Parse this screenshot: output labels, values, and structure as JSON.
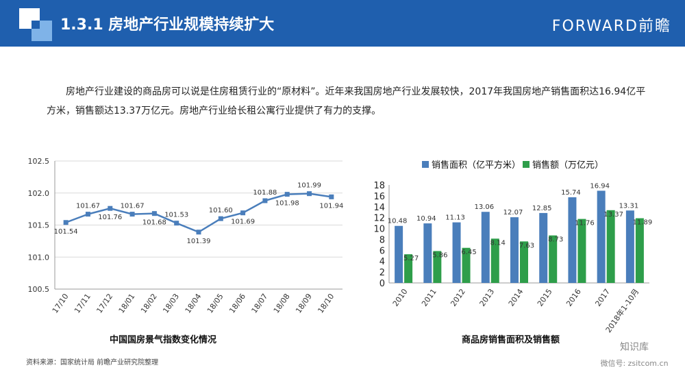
{
  "header": {
    "title": "1.3.1 房地产行业规模持续扩大",
    "brand": "FORWARD前瞻"
  },
  "intro": "房地产行业建设的商品房可以说是住房租赁行业的“原材料”。近年来我国房地产行业发展较快，2017年我国房地产销售面积达16.94亿平方米，销售额达13.37万亿元。房地产行业给长租公寓行业提供了有力的支撑。",
  "source": "资料来源：国家统计局 前瞻产业研究院整理",
  "wechat": {
    "name": "知识库",
    "id": "微信号: zsitcom.cn"
  },
  "colors": {
    "header": "#1f5fae",
    "line": "#4a7ebb",
    "area": "#4a7ebb",
    "sales": "#2e9e4a"
  },
  "chart_data": [
    {
      "type": "line",
      "title": "中国国房景气指数变化情况",
      "x": [
        "17/10",
        "17/11",
        "17/12",
        "18/01",
        "18/02",
        "18/03",
        "18/04",
        "18/05",
        "18/06",
        "18/07",
        "18/08",
        "18/09",
        "18/10"
      ],
      "values": [
        101.54,
        101.67,
        101.76,
        101.67,
        101.68,
        101.53,
        101.39,
        101.6,
        101.69,
        101.88,
        101.98,
        101.99,
        101.94
      ],
      "value_labels": [
        "101.54",
        "101.67",
        "101.76",
        "101.67",
        "101.68",
        "101.53",
        "101.39",
        "101.60",
        "101.69",
        "101.88",
        "101.98",
        "101.99",
        "101.94"
      ],
      "ylim": [
        100.5,
        102.5
      ],
      "yticks": [
        "100.5",
        "101.0",
        "101.5",
        "102.0",
        "102.5"
      ],
      "grid": true
    },
    {
      "type": "bar",
      "title": "商品房销售面积及销售额",
      "categories": [
        "2010",
        "2011",
        "2012",
        "2013",
        "2014",
        "2015",
        "2016",
        "2017",
        "2018年1-10月"
      ],
      "series": [
        {
          "name": "销售面积（亿平方米）",
          "values": [
            10.48,
            10.94,
            11.13,
            13.06,
            12.07,
            12.85,
            15.74,
            16.94,
            13.31
          ],
          "labels": [
            "10.48",
            "10.94",
            "11.13",
            "13.06",
            "12.07",
            "12.85",
            "15.74",
            "16.94",
            "13.31"
          ]
        },
        {
          "name": "销售额（万亿元）",
          "values": [
            5.27,
            5.86,
            6.45,
            8.14,
            7.63,
            8.73,
            11.76,
            13.37,
            11.89
          ],
          "labels": [
            "5.27",
            "5.86",
            "6.45",
            "8.14",
            "7.63",
            "8.73",
            "11.76",
            "13.37",
            "11.89"
          ]
        }
      ],
      "ylim": [
        0,
        18
      ],
      "yticks": [
        "0",
        "2",
        "4",
        "6",
        "8",
        "10",
        "12",
        "14",
        "16",
        "18"
      ],
      "legend": "top",
      "grid": false
    }
  ]
}
